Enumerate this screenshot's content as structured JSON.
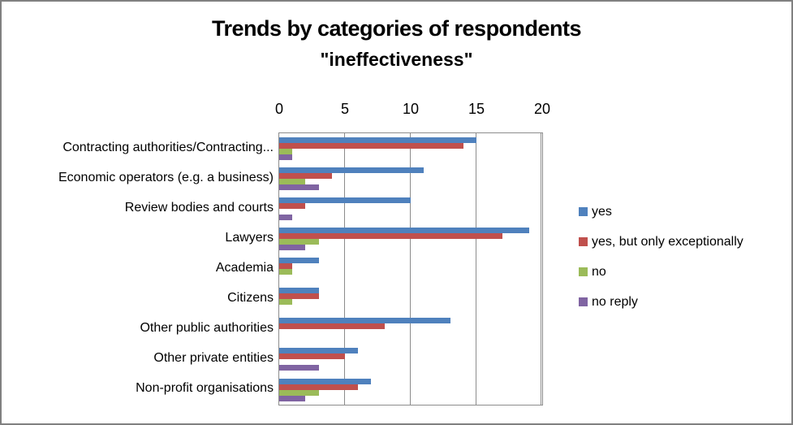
{
  "chart_data": {
    "type": "bar",
    "orientation": "horizontal",
    "title": "Trends by categories of respondents",
    "subtitle": "\"ineffectiveness\"",
    "categories": [
      "Contracting authorities/Contracting...",
      "Economic operators (e.g. a business)",
      "Review bodies and courts",
      "Lawyers",
      "Academia",
      "Citizens",
      "Other public authorities",
      "Other private entities",
      "Non-profit organisations"
    ],
    "series": [
      {
        "name": "yes",
        "color": "#4F81BD",
        "values": [
          15,
          11,
          10,
          19,
          3,
          3,
          13,
          6,
          7
        ]
      },
      {
        "name": "yes, but only exceptionally",
        "color": "#C0504D",
        "values": [
          14,
          4,
          2,
          17,
          1,
          3,
          8,
          5,
          6
        ]
      },
      {
        "name": "no",
        "color": "#9BBB59",
        "values": [
          1,
          2,
          0,
          3,
          1,
          1,
          0,
          0,
          3
        ]
      },
      {
        "name": "no reply",
        "color": "#8064A2",
        "values": [
          1,
          3,
          1,
          2,
          0,
          0,
          0,
          3,
          2
        ]
      }
    ],
    "xlim": [
      0,
      20
    ],
    "x_ticks": [
      "0",
      "5",
      "10",
      "15",
      "20"
    ],
    "x_tick_values": [
      0,
      5,
      10,
      15,
      20
    ],
    "axis_position": "top",
    "grid": true,
    "legend_position": "right",
    "xlabel": "",
    "ylabel": ""
  }
}
